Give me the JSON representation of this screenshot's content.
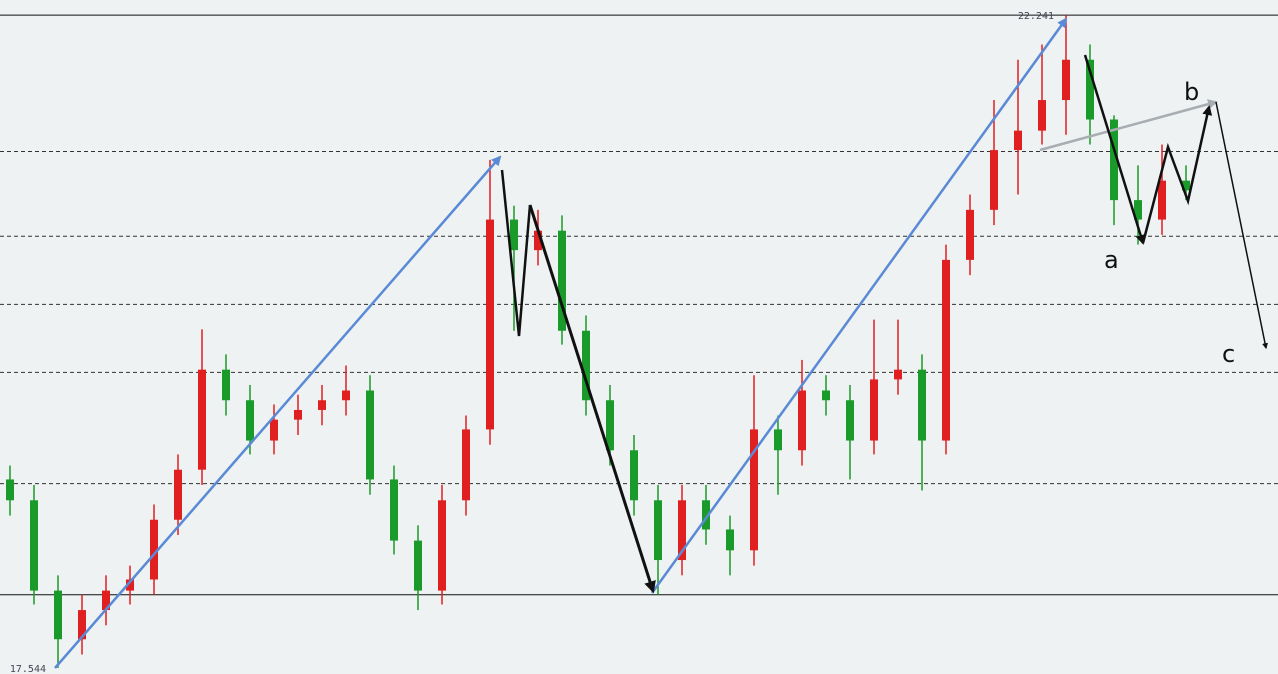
{
  "chart_data": {
    "type": "candlestick",
    "up_color": "#e02020",
    "down_color": "#1a9a2a",
    "ylim": [
      17.5,
      22.35
    ],
    "solid_levels": [
      22.241,
      18.07
    ],
    "dashed_levels": [
      21.26,
      20.65,
      20.16,
      19.67,
      18.87
    ],
    "annotations": [
      "a",
      "b",
      "c"
    ],
    "open": [
      18.9,
      18.75,
      18.1,
      17.75,
      17.96,
      18.1,
      18.18,
      18.61,
      18.97,
      19.69,
      19.47,
      19.18,
      19.33,
      19.4,
      19.47,
      19.54,
      18.9,
      18.46,
      18.1,
      18.75,
      19.26,
      20.77,
      20.55,
      20.69,
      19.97,
      19.47,
      19.11,
      18.75,
      18.32,
      18.75,
      18.54,
      18.39,
      19.26,
      19.11,
      19.54,
      19.47,
      19.18,
      19.62,
      19.69,
      19.18,
      20.48,
      20.84,
      21.27,
      21.41,
      21.63,
      21.92,
      21.49,
      20.91,
      20.77,
      21.05
    ],
    "high": [
      19.0,
      18.86,
      18.21,
      18.07,
      18.21,
      18.28,
      18.72,
      19.08,
      19.98,
      19.8,
      19.58,
      19.44,
      19.51,
      19.58,
      19.72,
      19.65,
      19.0,
      18.57,
      18.86,
      19.36,
      21.2,
      20.87,
      20.84,
      20.8,
      20.08,
      19.58,
      19.22,
      18.86,
      18.86,
      18.86,
      18.64,
      19.65,
      19.36,
      19.76,
      19.65,
      19.58,
      20.05,
      20.05,
      19.8,
      20.59,
      20.95,
      21.63,
      21.92,
      22.03,
      22.241,
      22.03,
      21.52,
      21.16,
      21.31,
      21.16
    ],
    "low": [
      18.64,
      18.0,
      17.544,
      17.64,
      17.85,
      18.0,
      18.07,
      18.5,
      18.86,
      19.36,
      19.08,
      19.08,
      19.22,
      19.29,
      19.36,
      18.79,
      18.36,
      17.96,
      18.0,
      18.64,
      19.15,
      19.97,
      20.44,
      19.87,
      19.36,
      19.0,
      18.64,
      18.07,
      18.21,
      18.43,
      18.21,
      18.28,
      18.79,
      19.0,
      19.36,
      18.9,
      19.08,
      19.51,
      18.82,
      19.08,
      20.37,
      20.73,
      20.95,
      21.31,
      21.38,
      21.31,
      20.73,
      20.59,
      20.66,
      20.91
    ],
    "close": [
      18.75,
      18.1,
      17.75,
      17.96,
      18.1,
      18.18,
      18.61,
      18.97,
      19.69,
      19.47,
      19.18,
      19.33,
      19.4,
      19.47,
      19.54,
      18.9,
      18.46,
      18.1,
      18.75,
      19.26,
      20.77,
      20.55,
      20.69,
      19.97,
      19.47,
      19.11,
      18.75,
      18.32,
      18.75,
      18.54,
      18.39,
      19.26,
      19.11,
      19.54,
      19.47,
      19.18,
      19.62,
      19.69,
      19.18,
      20.48,
      20.84,
      21.27,
      21.41,
      21.63,
      21.92,
      21.49,
      20.91,
      20.77,
      21.05,
      20.98
    ]
  }
}
